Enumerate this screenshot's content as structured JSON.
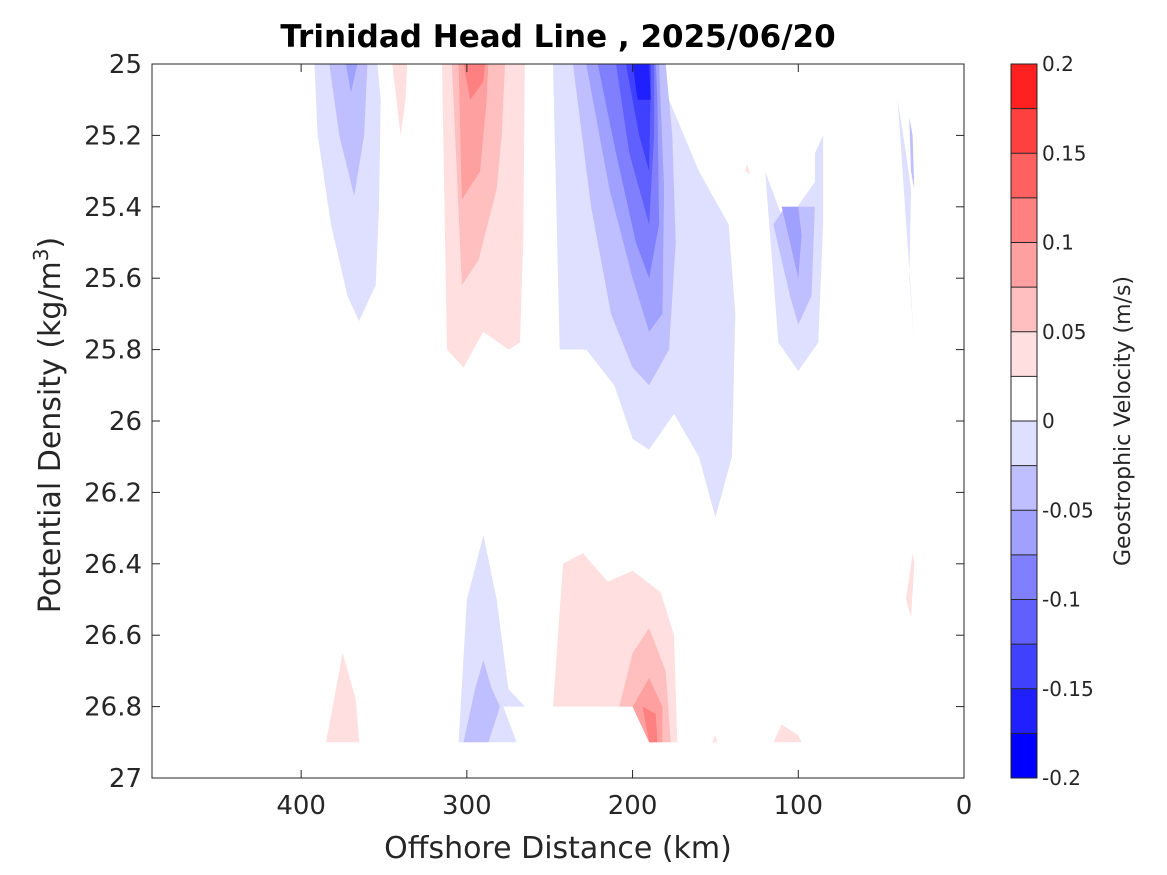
{
  "chart_data": {
    "type": "contourf",
    "title": "Trinidad Head Line , 2025/06/20",
    "xlabel": "Offshore Distance (km)",
    "ylabel": "Potential Density (kg/m",
    "ylabel_superscript": "3",
    "ylabel_suffix": ")",
    "x_reversed": true,
    "y_reversed": true,
    "xlim": [
      0,
      490
    ],
    "ylim": [
      25,
      27
    ],
    "x_ticks": [
      "400",
      "300",
      "200",
      "100",
      "0"
    ],
    "x_tick_values": [
      400,
      300,
      200,
      100,
      0
    ],
    "y_ticks": [
      "25",
      "25.2",
      "25.4",
      "25.6",
      "25.8",
      "26",
      "26.2",
      "26.4",
      "26.6",
      "26.8",
      "27"
    ],
    "y_tick_values": [
      25,
      25.2,
      25.4,
      25.6,
      25.8,
      26,
      26.2,
      26.4,
      26.6,
      26.8,
      27
    ],
    "colorbar": {
      "label": "Geostrophic Velocity (m/s)",
      "ticks": [
        "0.2",
        "0.15",
        "0.1",
        "0.05",
        "0",
        "-0.05",
        "-0.1",
        "-0.15",
        "-0.2"
      ],
      "tick_values": [
        0.2,
        0.15,
        0.1,
        0.05,
        0,
        -0.05,
        -0.1,
        -0.15,
        -0.2
      ],
      "levels": [
        -0.2,
        -0.175,
        -0.15,
        -0.125,
        -0.1,
        -0.075,
        -0.05,
        -0.025,
        0,
        0.025,
        0.05,
        0.075,
        0.1,
        0.125,
        0.15,
        0.175,
        0.2
      ],
      "colors": [
        "#0000ff",
        "#2020ff",
        "#4040ff",
        "#6060ff",
        "#8080ff",
        "#a0a0ff",
        "#bfbfff",
        "#dfdfff",
        "#ffffff",
        "#ffffff",
        "#ffdfdf",
        "#ffbfbf",
        "#ffa0a0",
        "#ff8080",
        "#ff6060",
        "#ff4040",
        "#ff2020",
        "#ff0000"
      ]
    },
    "regions": [
      {
        "level": -0.025,
        "points": [
          [
            392,
            25
          ],
          [
            390,
            25.2
          ],
          [
            382,
            25.45
          ],
          [
            372,
            25.65
          ],
          [
            365,
            25.72
          ],
          [
            355,
            25.62
          ],
          [
            353,
            25.4
          ],
          [
            352,
            25.1
          ],
          [
            354,
            25
          ]
        ]
      },
      {
        "level": -0.05,
        "points": [
          [
            383,
            25
          ],
          [
            377,
            25.2
          ],
          [
            368,
            25.37
          ],
          [
            362,
            25.2
          ],
          [
            360,
            25
          ]
        ]
      },
      {
        "level": -0.075,
        "points": [
          [
            373,
            25
          ],
          [
            370,
            25.08
          ],
          [
            366,
            25
          ]
        ]
      },
      {
        "level": 0.025,
        "points": [
          [
            345,
            25
          ],
          [
            340,
            25.2
          ],
          [
            337,
            25.1
          ],
          [
            336,
            25
          ]
        ]
      },
      {
        "level": 0.025,
        "points": [
          [
            315,
            25
          ],
          [
            312,
            25.8
          ],
          [
            302,
            25.85
          ],
          [
            290,
            25.75
          ],
          [
            275,
            25.8
          ],
          [
            268,
            25.78
          ],
          [
            266,
            25.5
          ],
          [
            265,
            25
          ]
        ]
      },
      {
        "level": 0.05,
        "points": [
          [
            309,
            25
          ],
          [
            303,
            25.62
          ],
          [
            293,
            25.55
          ],
          [
            282,
            25.35
          ],
          [
            279,
            25.2
          ],
          [
            277,
            25
          ]
        ]
      },
      {
        "level": 0.075,
        "points": [
          [
            305,
            25
          ],
          [
            303,
            25.38
          ],
          [
            292,
            25.3
          ],
          [
            288,
            25.1
          ],
          [
            287,
            25
          ]
        ]
      },
      {
        "level": 0.1,
        "points": [
          [
            302,
            25
          ],
          [
            298,
            25.1
          ],
          [
            290,
            25.05
          ],
          [
            289,
            25
          ]
        ]
      },
      {
        "level": -0.025,
        "points": [
          [
            248,
            25
          ],
          [
            244,
            25.8
          ],
          [
            228,
            25.8
          ],
          [
            211,
            25.9
          ],
          [
            200,
            26.05
          ],
          [
            190,
            26.08
          ],
          [
            175,
            25.98
          ],
          [
            160,
            26.1
          ],
          [
            150,
            26.27
          ],
          [
            140,
            26.1
          ],
          [
            138,
            25.7
          ],
          [
            142,
            25.45
          ],
          [
            160,
            25.3
          ],
          [
            178,
            25.1
          ],
          [
            184,
            25
          ]
        ]
      },
      {
        "level": -0.05,
        "points": [
          [
            236,
            25
          ],
          [
            225,
            25.4
          ],
          [
            213,
            25.7
          ],
          [
            200,
            25.85
          ],
          [
            190,
            25.9
          ],
          [
            178,
            25.8
          ],
          [
            174,
            25.5
          ],
          [
            176,
            25.2
          ],
          [
            180,
            25
          ]
        ]
      },
      {
        "level": -0.075,
        "points": [
          [
            228,
            25
          ],
          [
            214,
            25.35
          ],
          [
            200,
            25.6
          ],
          [
            190,
            25.75
          ],
          [
            182,
            25.7
          ],
          [
            181,
            25.35
          ],
          [
            184,
            25
          ]
        ]
      },
      {
        "level": -0.1,
        "points": [
          [
            221,
            25
          ],
          [
            210,
            25.25
          ],
          [
            198,
            25.5
          ],
          [
            190,
            25.6
          ],
          [
            184,
            25.45
          ],
          [
            185,
            25.1
          ],
          [
            186,
            25
          ]
        ]
      },
      {
        "level": -0.125,
        "points": [
          [
            210,
            25
          ],
          [
            202,
            25.25
          ],
          [
            190,
            25.45
          ],
          [
            187,
            25.2
          ],
          [
            187,
            25
          ]
        ]
      },
      {
        "level": -0.15,
        "points": [
          [
            204,
            25
          ],
          [
            196,
            25.2
          ],
          [
            190,
            25.3
          ],
          [
            189,
            25.05
          ],
          [
            189,
            25
          ]
        ]
      },
      {
        "level": -0.175,
        "points": [
          [
            200,
            25
          ],
          [
            197,
            25.1
          ],
          [
            189,
            25.1
          ],
          [
            190,
            25
          ]
        ]
      },
      {
        "level": 0.025,
        "points": [
          [
            132,
            25.3
          ],
          [
            129,
            25.31
          ],
          [
            131,
            25.28
          ]
        ]
      },
      {
        "level": -0.025,
        "points": [
          [
            120,
            25.3
          ],
          [
            112,
            25.78
          ],
          [
            100,
            25.86
          ],
          [
            88,
            25.78
          ],
          [
            85,
            25.45
          ],
          [
            85,
            25.2
          ],
          [
            90,
            25.25
          ],
          [
            90,
            25.33
          ],
          [
            108,
            25.45
          ]
        ]
      },
      {
        "level": -0.05,
        "points": [
          [
            115,
            25.45
          ],
          [
            105,
            25.65
          ],
          [
            100,
            25.73
          ],
          [
            92,
            25.65
          ],
          [
            90,
            25.4
          ],
          [
            108,
            25.4
          ]
        ]
      },
      {
        "level": -0.075,
        "points": [
          [
            110,
            25.4
          ],
          [
            100,
            25.6
          ],
          [
            98,
            25.48
          ],
          [
            100,
            25.4
          ]
        ]
      },
      {
        "level": -0.025,
        "points": [
          [
            40,
            25.1
          ],
          [
            30,
            25.78
          ],
          [
            33,
            25.6
          ],
          [
            32,
            25.35
          ],
          [
            35,
            25.25
          ]
        ]
      },
      {
        "level": -0.05,
        "points": [
          [
            33,
            25.15
          ],
          [
            32,
            25.3
          ],
          [
            30,
            25.35
          ],
          [
            31,
            25.2
          ]
        ]
      },
      {
        "level": -0.025,
        "points": [
          [
            305,
            26.9
          ],
          [
            300,
            26.5
          ],
          [
            290,
            26.32
          ],
          [
            282,
            26.5
          ],
          [
            275,
            26.75
          ],
          [
            265,
            26.8
          ],
          [
            278,
            26.8
          ],
          [
            270,
            26.9
          ]
        ]
      },
      {
        "level": -0.05,
        "points": [
          [
            302,
            26.9
          ],
          [
            295,
            26.75
          ],
          [
            290,
            26.67
          ],
          [
            285,
            26.75
          ],
          [
            280,
            26.8
          ],
          [
            287,
            26.9
          ]
        ]
      },
      {
        "level": 0.025,
        "points": [
          [
            385,
            26.9
          ],
          [
            375,
            26.65
          ],
          [
            367,
            26.78
          ],
          [
            365,
            26.9
          ]
        ]
      },
      {
        "level": 0.025,
        "points": [
          [
            248,
            26.8
          ],
          [
            242,
            26.4
          ],
          [
            230,
            26.37
          ],
          [
            215,
            26.45
          ],
          [
            200,
            26.42
          ],
          [
            183,
            26.48
          ],
          [
            175,
            26.6
          ],
          [
            173,
            26.9
          ],
          [
            190,
            26.9
          ],
          [
            200,
            26.8
          ]
        ]
      },
      {
        "level": 0.05,
        "points": [
          [
            208,
            26.8
          ],
          [
            200,
            26.65
          ],
          [
            190,
            26.58
          ],
          [
            180,
            26.7
          ],
          [
            177,
            26.9
          ],
          [
            190,
            26.9
          ],
          [
            200,
            26.8
          ]
        ]
      },
      {
        "level": 0.075,
        "points": [
          [
            200,
            26.8
          ],
          [
            190,
            26.72
          ],
          [
            182,
            26.8
          ],
          [
            182,
            26.9
          ],
          [
            190,
            26.9
          ]
        ]
      },
      {
        "level": 0.1,
        "points": [
          [
            194,
            26.8
          ],
          [
            186,
            26.82
          ],
          [
            185,
            26.9
          ],
          [
            190,
            26.9
          ]
        ]
      },
      {
        "level": 0.025,
        "points": [
          [
            152,
            26.9
          ],
          [
            150,
            26.88
          ],
          [
            149,
            26.9
          ]
        ]
      },
      {
        "level": 0.025,
        "points": [
          [
            115,
            26.9
          ],
          [
            110,
            26.85
          ],
          [
            100,
            26.88
          ],
          [
            98,
            26.9
          ]
        ]
      },
      {
        "level": 0.025,
        "points": [
          [
            35,
            26.5
          ],
          [
            32,
            26.55
          ],
          [
            30,
            26.4
          ],
          [
            31,
            26.37
          ]
        ]
      }
    ]
  }
}
